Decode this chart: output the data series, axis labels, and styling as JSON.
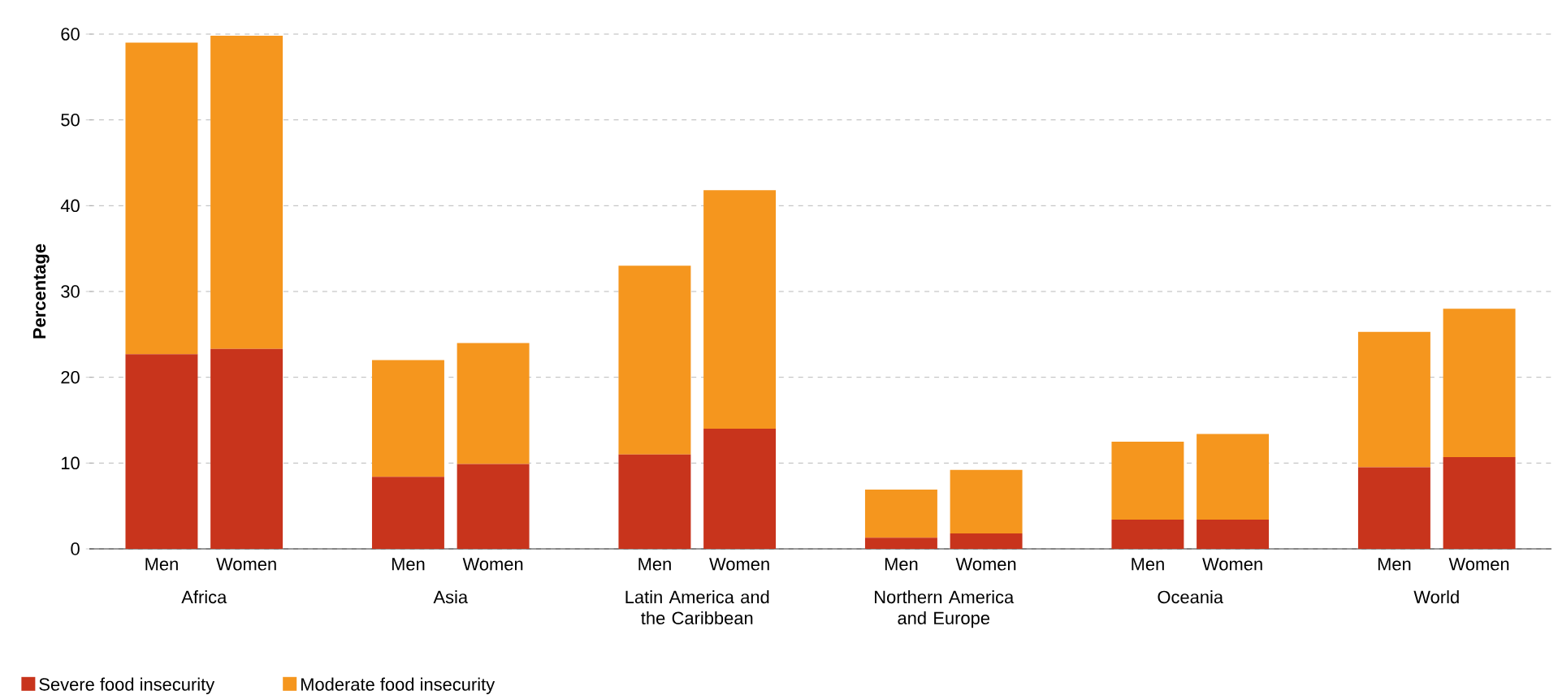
{
  "chart_data": {
    "type": "bar",
    "stacked": true,
    "ylabel": "Percentage",
    "categories": [
      "Men",
      "Women",
      "Men",
      "Women",
      "Men",
      "Women",
      "Men",
      "Women",
      "Men",
      "Women",
      "Men",
      "Women"
    ],
    "annotations": [
      "Africa",
      "Asia",
      "Latin America and the Caribbean",
      "Northern America and Europe",
      "Oceania",
      "World"
    ],
    "series": [
      {
        "name": "Severe food insecurity",
        "color": "#c8341c",
        "values": [
          22.7,
          23.3,
          8.4,
          9.9,
          11.0,
          14.0,
          1.3,
          1.8,
          3.4,
          3.4,
          9.5,
          10.7
        ]
      },
      {
        "name": "Moderate food insecurity",
        "color": "#f5961e",
        "values": [
          36.3,
          36.5,
          13.6,
          14.1,
          22.0,
          27.8,
          5.6,
          7.4,
          9.1,
          10.0,
          15.8,
          17.3
        ]
      }
    ],
    "ylim": [
      0,
      60
    ],
    "yticks": [
      0,
      10,
      20,
      30,
      40,
      50,
      60
    ],
    "grid": "y",
    "legend": "bottom left"
  }
}
